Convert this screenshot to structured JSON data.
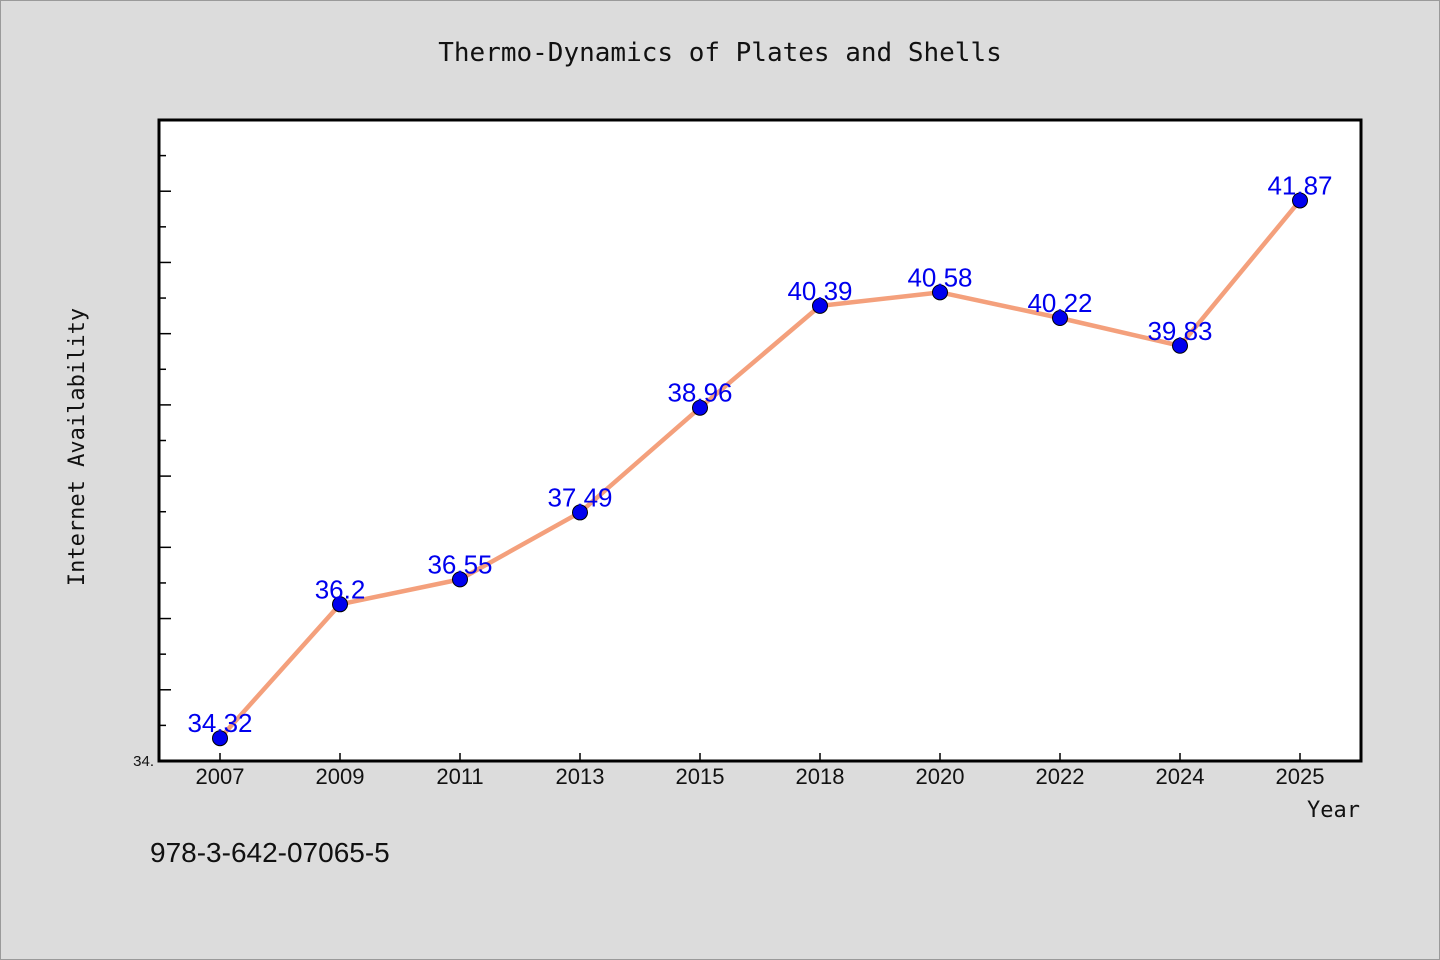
{
  "chart_data": {
    "type": "line",
    "title": "Thermo-Dynamics of Plates and Shells",
    "xlabel": "Year",
    "ylabel": "Internet Availability",
    "categories": [
      "2007",
      "2009",
      "2011",
      "2013",
      "2015",
      "2018",
      "2020",
      "2022",
      "2024",
      "2025"
    ],
    "values": [
      34.32,
      36.2,
      36.55,
      37.49,
      38.96,
      40.39,
      40.58,
      40.22,
      39.83,
      41.87
    ],
    "data_labels": [
      "34.32",
      "36.2",
      "36.55",
      "37.49",
      "38.96",
      "40.39",
      "40.58",
      "40.22",
      "39.83",
      "41.87"
    ],
    "ytick_label": "34.",
    "ylim": [
      34.0,
      43.0
    ],
    "grid": false,
    "legend": "none",
    "colors": {
      "line": "#f4a07c",
      "marker": "#0000ee",
      "label": "#0000ee",
      "plot_bg": "#ffffff",
      "page_bg": "#dcdcdc"
    }
  },
  "footer": {
    "isbn": "978-3-642-07065-5"
  }
}
